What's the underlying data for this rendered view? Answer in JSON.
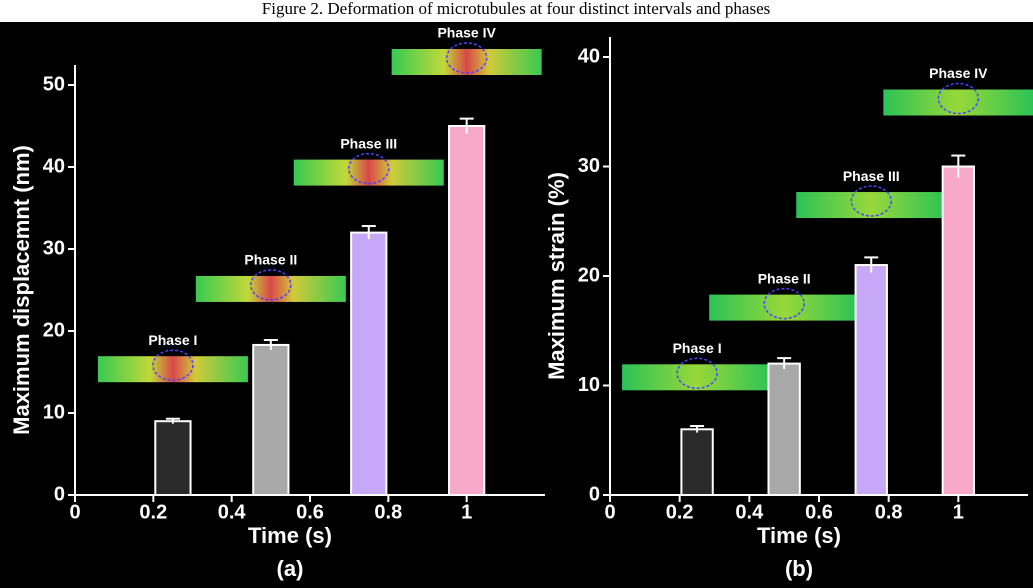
{
  "figure_title": "Figure 2. Deformation of microtubules at four distinct intervals and phases",
  "chart_data": [
    {
      "type": "bar",
      "panel_label": "(a)",
      "xlabel": "Time (s)",
      "ylabel": "Maximum displacemnt (nm)",
      "x": [
        0.25,
        0.5,
        0.75,
        1
      ],
      "values": [
        9,
        18.3,
        32,
        45
      ],
      "errors": [
        0.3,
        0.6,
        0.8,
        0.9
      ],
      "colors": [
        "#2a2a2a",
        "#a8a8a8",
        "#c6a8f7",
        "#f8a9ca"
      ],
      "annotations": [
        "Phase I",
        "Phase II",
        "Phase III",
        "Phase IV"
      ],
      "xlim": [
        0,
        1.2
      ],
      "xticks": [
        0,
        0.2,
        0.4,
        0.6,
        0.8,
        1
      ],
      "ylim": [
        0,
        50
      ],
      "yticks": [
        0,
        10,
        20,
        30,
        40,
        50
      ]
    },
    {
      "type": "bar",
      "panel_label": "(b)",
      "xlabel": "Time (s)",
      "ylabel": "Maximum strain (%)",
      "x": [
        0.25,
        0.5,
        0.75,
        1
      ],
      "values": [
        6,
        12,
        21,
        30
      ],
      "errors": [
        0.3,
        0.5,
        0.7,
        1
      ],
      "colors": [
        "#2a2a2a",
        "#a8a8a8",
        "#c6a8f7",
        "#f8a9ca"
      ],
      "annotations": [
        "Phase I",
        "Phase II",
        "Phase III",
        "Phase IV"
      ],
      "xlim": [
        0,
        1.2
      ],
      "xticks": [
        0,
        0.2,
        0.4,
        0.6,
        0.8,
        1
      ],
      "ylim": [
        0,
        40
      ],
      "yticks": [
        0,
        10,
        20,
        30,
        40
      ]
    }
  ]
}
